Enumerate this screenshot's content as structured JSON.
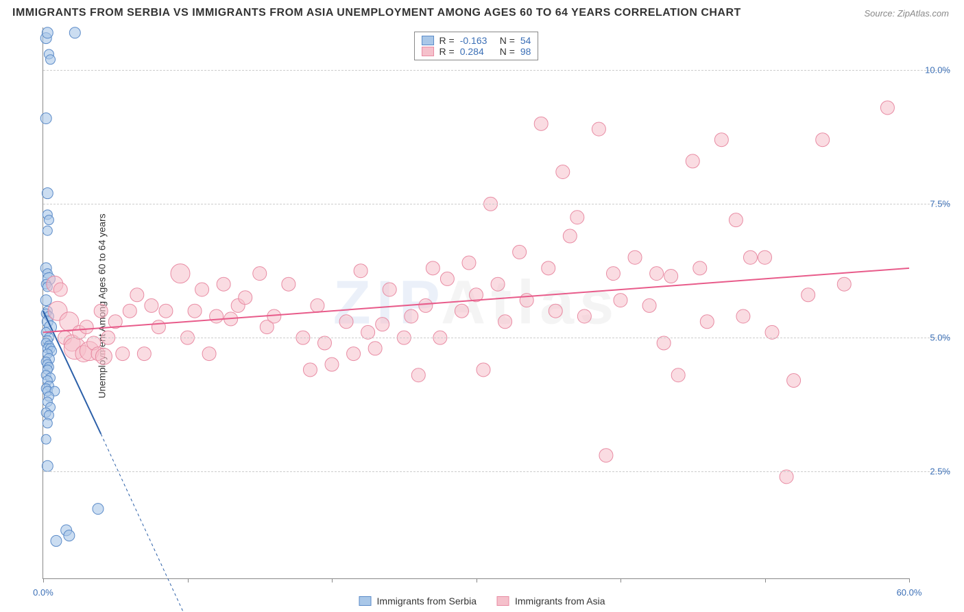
{
  "title": "IMMIGRANTS FROM SERBIA VS IMMIGRANTS FROM ASIA UNEMPLOYMENT AMONG AGES 60 TO 64 YEARS CORRELATION CHART",
  "source": "Source: ZipAtlas.com",
  "watermark_z": "ZIP",
  "watermark_rest": "Atlas",
  "y_axis_label": "Unemployment Among Ages 60 to 64 years",
  "chart": {
    "type": "scatter",
    "xlim": [
      0,
      60
    ],
    "ylim": [
      0.5,
      10.8
    ],
    "x_ticks": [
      0,
      10,
      20,
      30,
      40,
      50,
      60
    ],
    "x_tick_labels": {
      "0": "0.0%",
      "60": "60.0%"
    },
    "y_ticks": [
      2.5,
      5.0,
      7.5,
      10.0
    ],
    "y_tick_labels": [
      "2.5%",
      "5.0%",
      "7.5%",
      "10.0%"
    ],
    "background_color": "#ffffff",
    "grid_color": "#cccccc",
    "axis_color": "#888888",
    "tick_label_color": "#3b6fb6",
    "series": [
      {
        "name": "Immigrants from Serbia",
        "legend_label": "Immigrants from Serbia",
        "marker_fill": "#a9c7e8",
        "marker_stroke": "#5a8ac8",
        "marker_opacity": 0.6,
        "trend_color": "#2b5fa8",
        "trend_width": 2,
        "R": "-0.163",
        "N": "54",
        "trend": {
          "x0": 0,
          "y0": 5.5,
          "x1": 4,
          "y1": 3.2,
          "dash_x1": 10,
          "dash_y1": -0.3
        },
        "points": [
          {
            "x": 0.2,
            "y": 10.6,
            "r": 8
          },
          {
            "x": 0.3,
            "y": 10.7,
            "r": 8
          },
          {
            "x": 2.2,
            "y": 10.7,
            "r": 8
          },
          {
            "x": 0.4,
            "y": 10.3,
            "r": 7
          },
          {
            "x": 0.5,
            "y": 10.2,
            "r": 7
          },
          {
            "x": 0.2,
            "y": 9.1,
            "r": 8
          },
          {
            "x": 0.3,
            "y": 7.7,
            "r": 8
          },
          {
            "x": 0.3,
            "y": 7.3,
            "r": 7
          },
          {
            "x": 0.4,
            "y": 7.2,
            "r": 7
          },
          {
            "x": 0.3,
            "y": 7.0,
            "r": 7
          },
          {
            "x": 0.2,
            "y": 6.3,
            "r": 8
          },
          {
            "x": 0.3,
            "y": 6.2,
            "r": 7
          },
          {
            "x": 0.4,
            "y": 6.1,
            "r": 9
          },
          {
            "x": 0.2,
            "y": 6.0,
            "r": 7
          },
          {
            "x": 0.3,
            "y": 5.95,
            "r": 7
          },
          {
            "x": 0.2,
            "y": 5.7,
            "r": 8
          },
          {
            "x": 0.3,
            "y": 5.5,
            "r": 7
          },
          {
            "x": 0.2,
            "y": 5.45,
            "r": 7
          },
          {
            "x": 0.4,
            "y": 5.4,
            "r": 7
          },
          {
            "x": 0.3,
            "y": 5.3,
            "r": 8
          },
          {
            "x": 0.5,
            "y": 5.2,
            "r": 9
          },
          {
            "x": 0.2,
            "y": 5.1,
            "r": 7
          },
          {
            "x": 0.4,
            "y": 5.0,
            "r": 7
          },
          {
            "x": 0.3,
            "y": 4.95,
            "r": 7
          },
          {
            "x": 0.2,
            "y": 4.9,
            "r": 7
          },
          {
            "x": 0.4,
            "y": 4.85,
            "r": 7
          },
          {
            "x": 0.3,
            "y": 4.8,
            "r": 7
          },
          {
            "x": 0.5,
            "y": 4.8,
            "r": 7
          },
          {
            "x": 0.6,
            "y": 4.75,
            "r": 7
          },
          {
            "x": 0.3,
            "y": 4.7,
            "r": 7
          },
          {
            "x": 0.4,
            "y": 4.6,
            "r": 8
          },
          {
            "x": 0.2,
            "y": 4.55,
            "r": 7
          },
          {
            "x": 0.3,
            "y": 4.5,
            "r": 7
          },
          {
            "x": 0.4,
            "y": 4.45,
            "r": 7
          },
          {
            "x": 0.3,
            "y": 4.4,
            "r": 7
          },
          {
            "x": 0.2,
            "y": 4.3,
            "r": 7
          },
          {
            "x": 0.5,
            "y": 4.25,
            "r": 7
          },
          {
            "x": 0.3,
            "y": 4.2,
            "r": 7
          },
          {
            "x": 0.4,
            "y": 4.1,
            "r": 7
          },
          {
            "x": 0.2,
            "y": 4.05,
            "r": 7
          },
          {
            "x": 0.3,
            "y": 4.0,
            "r": 7
          },
          {
            "x": 0.8,
            "y": 4.0,
            "r": 7
          },
          {
            "x": 0.4,
            "y": 3.9,
            "r": 7
          },
          {
            "x": 0.3,
            "y": 3.8,
            "r": 7
          },
          {
            "x": 0.5,
            "y": 3.7,
            "r": 7
          },
          {
            "x": 0.2,
            "y": 3.6,
            "r": 7
          },
          {
            "x": 0.4,
            "y": 3.55,
            "r": 7
          },
          {
            "x": 0.3,
            "y": 3.4,
            "r": 7
          },
          {
            "x": 0.2,
            "y": 3.1,
            "r": 7
          },
          {
            "x": 0.3,
            "y": 2.6,
            "r": 8
          },
          {
            "x": 3.8,
            "y": 1.8,
            "r": 8
          },
          {
            "x": 1.6,
            "y": 1.4,
            "r": 8
          },
          {
            "x": 1.8,
            "y": 1.3,
            "r": 8
          },
          {
            "x": 0.9,
            "y": 1.2,
            "r": 8
          }
        ]
      },
      {
        "name": "Immigrants from Asia",
        "legend_label": "Immigrants from Asia",
        "marker_fill": "#f5c0cb",
        "marker_stroke": "#e88ba3",
        "marker_opacity": 0.55,
        "trend_color": "#e85b8a",
        "trend_width": 2,
        "R": "0.284",
        "N": "98",
        "trend": {
          "x0": 0,
          "y0": 5.1,
          "x1": 60,
          "y1": 6.3
        },
        "points": [
          {
            "x": 0.8,
            "y": 6.0,
            "r": 12
          },
          {
            "x": 1.0,
            "y": 5.5,
            "r": 14
          },
          {
            "x": 1.2,
            "y": 5.9,
            "r": 10
          },
          {
            "x": 1.5,
            "y": 5.0,
            "r": 10
          },
          {
            "x": 1.8,
            "y": 5.3,
            "r": 14
          },
          {
            "x": 2.0,
            "y": 4.9,
            "r": 12
          },
          {
            "x": 2.2,
            "y": 4.8,
            "r": 16
          },
          {
            "x": 2.5,
            "y": 5.1,
            "r": 10
          },
          {
            "x": 2.8,
            "y": 4.7,
            "r": 12
          },
          {
            "x": 3.0,
            "y": 5.2,
            "r": 10
          },
          {
            "x": 3.2,
            "y": 4.75,
            "r": 14
          },
          {
            "x": 3.5,
            "y": 4.9,
            "r": 10
          },
          {
            "x": 3.8,
            "y": 4.7,
            "r": 10
          },
          {
            "x": 4.0,
            "y": 5.5,
            "r": 10
          },
          {
            "x": 4.2,
            "y": 4.65,
            "r": 12
          },
          {
            "x": 4.5,
            "y": 5.0,
            "r": 10
          },
          {
            "x": 5.0,
            "y": 5.3,
            "r": 10
          },
          {
            "x": 5.5,
            "y": 4.7,
            "r": 10
          },
          {
            "x": 6.0,
            "y": 5.5,
            "r": 10
          },
          {
            "x": 6.5,
            "y": 5.8,
            "r": 10
          },
          {
            "x": 7.0,
            "y": 4.7,
            "r": 10
          },
          {
            "x": 7.5,
            "y": 5.6,
            "r": 10
          },
          {
            "x": 8.0,
            "y": 5.2,
            "r": 10
          },
          {
            "x": 8.5,
            "y": 5.5,
            "r": 10
          },
          {
            "x": 9.5,
            "y": 6.2,
            "r": 14
          },
          {
            "x": 10.0,
            "y": 5.0,
            "r": 10
          },
          {
            "x": 10.5,
            "y": 5.5,
            "r": 10
          },
          {
            "x": 11.0,
            "y": 5.9,
            "r": 10
          },
          {
            "x": 11.5,
            "y": 4.7,
            "r": 10
          },
          {
            "x": 12.0,
            "y": 5.4,
            "r": 10
          },
          {
            "x": 12.5,
            "y": 6.0,
            "r": 10
          },
          {
            "x": 13.0,
            "y": 5.35,
            "r": 10
          },
          {
            "x": 13.5,
            "y": 5.6,
            "r": 10
          },
          {
            "x": 14.0,
            "y": 5.75,
            "r": 10
          },
          {
            "x": 15.0,
            "y": 6.2,
            "r": 10
          },
          {
            "x": 15.5,
            "y": 5.2,
            "r": 10
          },
          {
            "x": 16.0,
            "y": 5.4,
            "r": 10
          },
          {
            "x": 17.0,
            "y": 6.0,
            "r": 10
          },
          {
            "x": 18.0,
            "y": 5.0,
            "r": 10
          },
          {
            "x": 18.5,
            "y": 4.4,
            "r": 10
          },
          {
            "x": 19.0,
            "y": 5.6,
            "r": 10
          },
          {
            "x": 19.5,
            "y": 4.9,
            "r": 10
          },
          {
            "x": 20.0,
            "y": 4.5,
            "r": 10
          },
          {
            "x": 21.0,
            "y": 5.3,
            "r": 10
          },
          {
            "x": 21.5,
            "y": 4.7,
            "r": 10
          },
          {
            "x": 22.0,
            "y": 6.25,
            "r": 10
          },
          {
            "x": 22.5,
            "y": 5.1,
            "r": 10
          },
          {
            "x": 23.0,
            "y": 4.8,
            "r": 10
          },
          {
            "x": 23.5,
            "y": 5.25,
            "r": 10
          },
          {
            "x": 24.0,
            "y": 5.9,
            "r": 10
          },
          {
            "x": 25.0,
            "y": 5.0,
            "r": 10
          },
          {
            "x": 25.5,
            "y": 5.4,
            "r": 10
          },
          {
            "x": 26.0,
            "y": 4.3,
            "r": 10
          },
          {
            "x": 26.5,
            "y": 5.6,
            "r": 10
          },
          {
            "x": 27.0,
            "y": 6.3,
            "r": 10
          },
          {
            "x": 27.5,
            "y": 5.0,
            "r": 10
          },
          {
            "x": 28.0,
            "y": 6.1,
            "r": 10
          },
          {
            "x": 29.0,
            "y": 5.5,
            "r": 10
          },
          {
            "x": 29.5,
            "y": 6.4,
            "r": 10
          },
          {
            "x": 30.0,
            "y": 5.8,
            "r": 10
          },
          {
            "x": 30.5,
            "y": 4.4,
            "r": 10
          },
          {
            "x": 31.0,
            "y": 7.5,
            "r": 10
          },
          {
            "x": 31.5,
            "y": 6.0,
            "r": 10
          },
          {
            "x": 32.0,
            "y": 5.3,
            "r": 10
          },
          {
            "x": 33.0,
            "y": 6.6,
            "r": 10
          },
          {
            "x": 33.5,
            "y": 5.7,
            "r": 10
          },
          {
            "x": 34.5,
            "y": 9.0,
            "r": 10
          },
          {
            "x": 35.0,
            "y": 6.3,
            "r": 10
          },
          {
            "x": 35.5,
            "y": 5.5,
            "r": 10
          },
          {
            "x": 36.0,
            "y": 8.1,
            "r": 10
          },
          {
            "x": 36.5,
            "y": 6.9,
            "r": 10
          },
          {
            "x": 37.0,
            "y": 7.25,
            "r": 10
          },
          {
            "x": 37.5,
            "y": 5.4,
            "r": 10
          },
          {
            "x": 38.5,
            "y": 8.9,
            "r": 10
          },
          {
            "x": 39.0,
            "y": 2.8,
            "r": 10
          },
          {
            "x": 39.5,
            "y": 6.2,
            "r": 10
          },
          {
            "x": 40.0,
            "y": 5.7,
            "r": 10
          },
          {
            "x": 41.0,
            "y": 6.5,
            "r": 10
          },
          {
            "x": 42.0,
            "y": 5.6,
            "r": 10
          },
          {
            "x": 42.5,
            "y": 6.2,
            "r": 10
          },
          {
            "x": 43.0,
            "y": 4.9,
            "r": 10
          },
          {
            "x": 43.5,
            "y": 6.15,
            "r": 10
          },
          {
            "x": 44.0,
            "y": 4.3,
            "r": 10
          },
          {
            "x": 45.0,
            "y": 8.3,
            "r": 10
          },
          {
            "x": 45.5,
            "y": 6.3,
            "r": 10
          },
          {
            "x": 46.0,
            "y": 5.3,
            "r": 10
          },
          {
            "x": 47.0,
            "y": 8.7,
            "r": 10
          },
          {
            "x": 48.0,
            "y": 7.2,
            "r": 10
          },
          {
            "x": 48.5,
            "y": 5.4,
            "r": 10
          },
          {
            "x": 49.0,
            "y": 6.5,
            "r": 10
          },
          {
            "x": 50.0,
            "y": 6.5,
            "r": 10
          },
          {
            "x": 50.5,
            "y": 5.1,
            "r": 10
          },
          {
            "x": 51.5,
            "y": 2.4,
            "r": 10
          },
          {
            "x": 52.0,
            "y": 4.2,
            "r": 10
          },
          {
            "x": 53.0,
            "y": 5.8,
            "r": 10
          },
          {
            "x": 54.0,
            "y": 8.7,
            "r": 10
          },
          {
            "x": 55.5,
            "y": 6.0,
            "r": 10
          },
          {
            "x": 58.5,
            "y": 9.3,
            "r": 10
          }
        ]
      }
    ]
  },
  "legend_labels": {
    "R_label": "R =",
    "N_label": "N ="
  }
}
